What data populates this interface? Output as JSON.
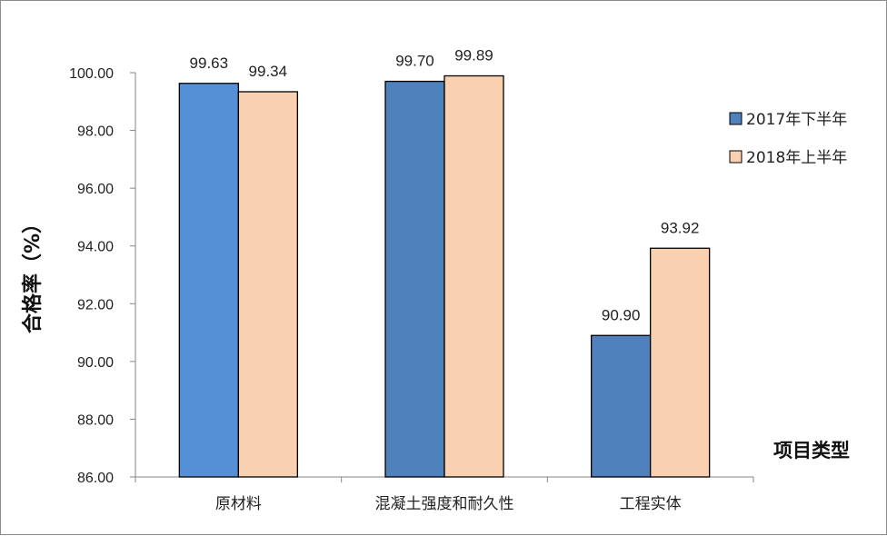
{
  "chart_data": {
    "type": "bar",
    "title": "",
    "xlabel": "项目类型",
    "ylabel": "合格率（%）",
    "categories": [
      "原材料",
      "混凝土强度和耐久性",
      "工程实体"
    ],
    "series": [
      {
        "name": "2017年下半年",
        "values": [
          99.63,
          99.7,
          90.9
        ],
        "color": "#4f81bd"
      },
      {
        "name": "2018年上半年",
        "values": [
          99.34,
          99.89,
          93.92
        ],
        "color": "#fad1b0"
      }
    ],
    "highlight_color": "#5590d6",
    "ylim": [
      86.0,
      100.0
    ],
    "ytick_step": 2.0,
    "ytick_labels": [
      "86.00",
      "88.00",
      "90.00",
      "92.00",
      "94.00",
      "96.00",
      "98.00",
      "100.00"
    ],
    "grid": false,
    "legend_position": "right"
  }
}
